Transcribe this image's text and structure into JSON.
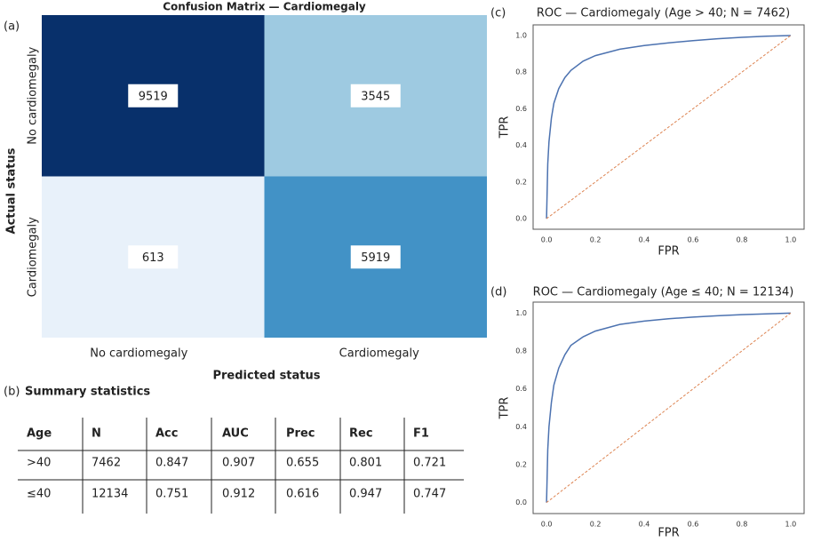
{
  "chart_data": [
    {
      "type": "heatmap",
      "panel_label": "(a)",
      "title": "Confusion Matrix — Cardiomegaly",
      "x_label": "Predicted status",
      "y_label": "Actual status",
      "x_categories": [
        "No cardiomegaly",
        "Cardiomegaly"
      ],
      "y_categories": [
        "No cardiomegaly",
        "Cardiomegaly"
      ],
      "values": [
        [
          9519,
          3545
        ],
        [
          613,
          5919
        ]
      ],
      "colors": [
        [
          "#08306b",
          "#9ecae1"
        ],
        [
          "#e8f1fa",
          "#4292c6"
        ]
      ]
    },
    {
      "type": "line",
      "panel_label": "(c)",
      "title": "ROC — Cardiomegaly (Age  > 40; N = 7462)",
      "x_label": "FPR",
      "y_label": "TPR",
      "xlim": [
        -0.055,
        1.055
      ],
      "ylim": [
        -0.058,
        1.058
      ],
      "xticks": [
        {
          "value": 0,
          "label": "0.0"
        },
        {
          "value": 0.2,
          "label": "0.2"
        },
        {
          "value": 0.4,
          "label": "0.4"
        },
        {
          "value": 0.6,
          "label": "0.6"
        },
        {
          "value": 0.8,
          "label": "0.8"
        },
        {
          "value": 1,
          "label": "1.0"
        }
      ],
      "yticks": [
        {
          "value": 0,
          "label": "0.0"
        },
        {
          "value": 0.2,
          "label": "0.2"
        },
        {
          "value": 0.4,
          "label": "0.4"
        },
        {
          "value": 0.6,
          "label": "0.6"
        },
        {
          "value": 0.8,
          "label": "0.8"
        },
        {
          "value": 1,
          "label": "1.0"
        }
      ],
      "grid": false,
      "series": [
        {
          "color": "#4c72b0",
          "dash": false,
          "x": [
            0,
            0.005,
            0.01,
            0.02,
            0.03,
            0.05,
            0.075,
            0.1,
            0.15,
            0.2,
            0.3,
            0.4,
            0.5,
            0.6,
            0.7,
            0.8,
            0.9,
            1.0
          ],
          "values": [
            0,
            0.3,
            0.42,
            0.55,
            0.63,
            0.71,
            0.77,
            0.81,
            0.86,
            0.89,
            0.925,
            0.945,
            0.96,
            0.972,
            0.982,
            0.99,
            0.996,
            1.0
          ]
        },
        {
          "color": "#dd8452",
          "dash": true,
          "x": [
            0,
            1
          ],
          "values": [
            0,
            1
          ]
        }
      ]
    },
    {
      "type": "line",
      "panel_label": "(d)",
      "title": "ROC — Cardiomegaly (Age ≤ 40; N = 12134)",
      "x_label": "FPR",
      "y_label": "TPR",
      "xlim": [
        -0.055,
        1.055
      ],
      "ylim": [
        -0.058,
        1.058
      ],
      "xticks": [
        {
          "value": 0,
          "label": "0.0"
        },
        {
          "value": 0.2,
          "label": "0.2"
        },
        {
          "value": 0.4,
          "label": "0.4"
        },
        {
          "value": 0.6,
          "label": "0.6"
        },
        {
          "value": 0.8,
          "label": "0.8"
        },
        {
          "value": 1,
          "label": "1.0"
        }
      ],
      "yticks": [
        {
          "value": 0,
          "label": "0.0"
        },
        {
          "value": 0.2,
          "label": "0.2"
        },
        {
          "value": 0.4,
          "label": "0.4"
        },
        {
          "value": 0.6,
          "label": "0.6"
        },
        {
          "value": 0.8,
          "label": "0.8"
        },
        {
          "value": 1,
          "label": "1.0"
        }
      ],
      "grid": false,
      "series": [
        {
          "color": "#4c72b0",
          "dash": false,
          "x": [
            0,
            0.005,
            0.01,
            0.02,
            0.03,
            0.05,
            0.075,
            0.1,
            0.15,
            0.2,
            0.3,
            0.4,
            0.5,
            0.6,
            0.7,
            0.8,
            0.9,
            1.0
          ],
          "values": [
            0,
            0.28,
            0.4,
            0.53,
            0.62,
            0.71,
            0.78,
            0.83,
            0.875,
            0.905,
            0.94,
            0.958,
            0.97,
            0.979,
            0.986,
            0.992,
            0.996,
            1.0
          ]
        },
        {
          "color": "#dd8452",
          "dash": true,
          "x": [
            0,
            1
          ],
          "values": [
            0,
            1
          ]
        }
      ]
    }
  ],
  "table": {
    "panel_label": "(b)",
    "title": "Summary statistics",
    "columns": [
      "Age",
      "N",
      "Acc",
      "AUC",
      "Prec",
      "Rec",
      "F1"
    ],
    "rows": [
      [
        ">40",
        7462,
        0.847,
        0.907,
        0.655,
        0.801,
        0.721
      ],
      [
        "≤40",
        12134,
        0.751,
        0.912,
        0.616,
        0.947,
        0.747
      ]
    ]
  }
}
